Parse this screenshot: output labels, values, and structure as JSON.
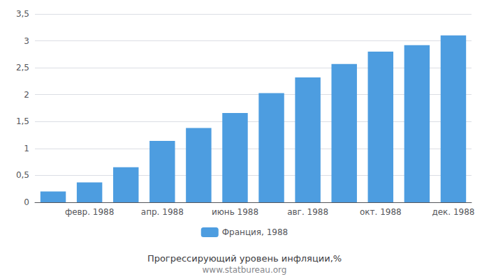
{
  "chart_data": {
    "type": "bar",
    "title": "Прогрессирующий уровень инфляции,%",
    "subtitle": "www.statbureau.org",
    "categories": [
      null,
      "февр. 1988",
      null,
      "апр. 1988",
      null,
      "июнь 1988",
      null,
      "авг. 1988",
      null,
      "окт. 1988",
      null,
      "дек. 1988"
    ],
    "series": [
      {
        "name": "Франция, 1988",
        "color": "#4d9de0",
        "values": [
          0.2,
          0.37,
          0.65,
          1.14,
          1.38,
          1.66,
          2.03,
          2.32,
          2.57,
          2.8,
          2.92,
          3.1
        ]
      }
    ],
    "ylim": [
      0,
      3.5
    ],
    "yticks": [
      0,
      {
        "value": 0.5,
        "label": "0,5"
      },
      1,
      {
        "value": 1.5,
        "label": "1,5"
      },
      2,
      {
        "value": 2.5,
        "label": "2,5"
      },
      3,
      {
        "value": 3.5,
        "label": "3,5"
      }
    ],
    "grid": true,
    "legend": "bottom"
  }
}
